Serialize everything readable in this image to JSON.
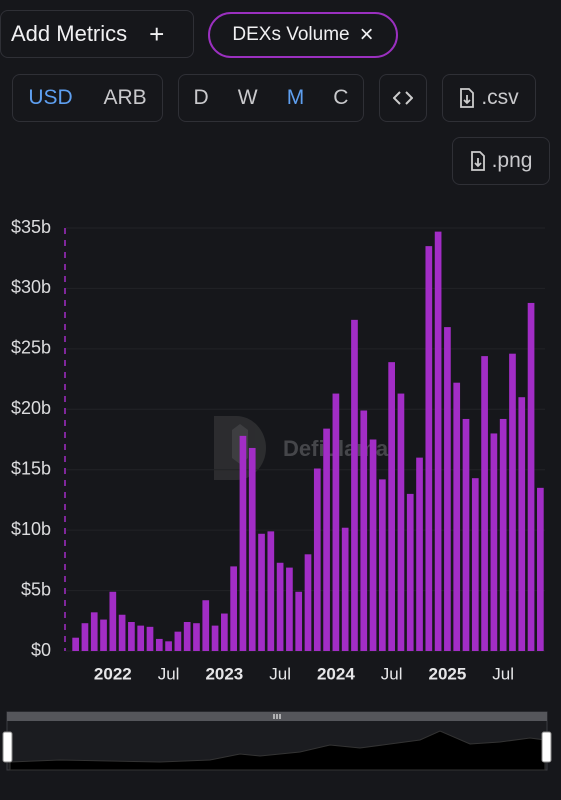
{
  "controls": {
    "add_metrics": "Add Metrics",
    "add_icon": "+",
    "metric_chip": "DEXs Volume",
    "remove_icon": "×",
    "currencies": [
      "USD",
      "ARB"
    ],
    "periods": [
      "D",
      "W",
      "M",
      "C"
    ],
    "csv": ".csv",
    "png": ".png"
  },
  "chart_data": {
    "type": "bar",
    "watermark": "DefiLlama",
    "categories": [
      null,
      null,
      null,
      null,
      "2022",
      null,
      null,
      null,
      null,
      null,
      "Jul",
      null,
      null,
      null,
      null,
      null,
      "2023",
      null,
      null,
      null,
      null,
      null,
      "Jul",
      null,
      null,
      null,
      null,
      null,
      "2024",
      null,
      null,
      null,
      null,
      null,
      "Jul",
      null,
      null,
      null,
      null,
      null,
      "2025",
      null,
      null,
      null,
      null,
      null,
      "Jul",
      null,
      null,
      null,
      null
    ],
    "values": [
      1.1,
      2.3,
      3.2,
      2.6,
      4.9,
      3.0,
      2.4,
      2.1,
      2.0,
      1.0,
      0.8,
      1.6,
      2.4,
      2.3,
      4.2,
      2.1,
      3.1,
      7.0,
      17.8,
      16.8,
      9.7,
      9.9,
      7.3,
      6.9,
      4.9,
      8.0,
      15.1,
      18.4,
      21.3,
      10.2,
      27.4,
      19.9,
      17.5,
      14.2,
      23.9,
      21.3,
      13.0,
      16.0,
      33.5,
      34.7,
      26.8,
      22.2,
      19.2,
      14.3,
      24.4,
      18.0,
      19.2,
      24.6,
      21.0,
      28.8,
      13.5
    ],
    "color": "#a22dc6",
    "ylim": [
      0,
      35
    ],
    "yticks": [
      {
        "value": 0,
        "label": "$0"
      },
      {
        "value": 5,
        "label": "$5b"
      },
      {
        "value": 10,
        "label": "$10b"
      },
      {
        "value": 15,
        "label": "$15b"
      },
      {
        "value": 20,
        "label": "$20b"
      },
      {
        "value": 25,
        "label": "$25b"
      },
      {
        "value": 30,
        "label": "$30b"
      },
      {
        "value": 35,
        "label": "$35b"
      }
    ],
    "grid": true
  }
}
